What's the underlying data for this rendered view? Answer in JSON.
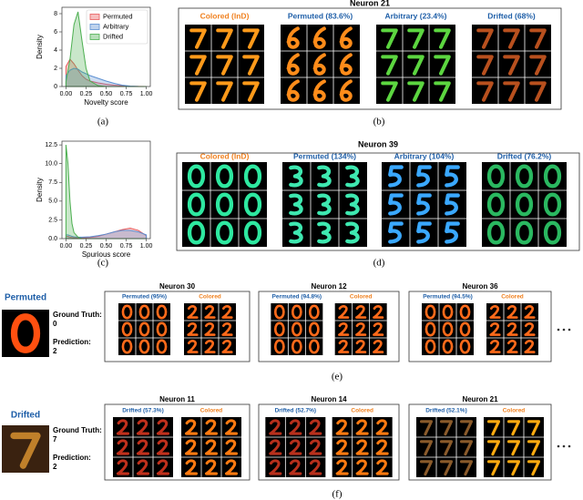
{
  "chart_data": [
    {
      "type": "area",
      "ylabel": "Density",
      "xlabel": "Novelty score",
      "x": [
        0,
        0.05,
        0.1,
        0.15,
        0.2,
        0.25,
        0.3,
        0.4,
        0.5,
        0.6,
        0.7,
        0.8,
        0.9,
        1.0
      ],
      "series": [
        {
          "name": "Permuted",
          "color": "#e8595a",
          "values": [
            2.2,
            3,
            2.5,
            1.8,
            1.2,
            0.8,
            0.6,
            0.4,
            0.25,
            0.15,
            0.08,
            0.03,
            0.01,
            0
          ]
        },
        {
          "name": "Arbitrary",
          "color": "#5b8fd1",
          "values": [
            1.2,
            1.8,
            2,
            1.9,
            1.6,
            1.4,
            1.2,
            0.9,
            0.6,
            0.35,
            0.15,
            0.05,
            0.01,
            0
          ]
        },
        {
          "name": "Drifted",
          "color": "#4caf50",
          "values": [
            0.5,
            3,
            6.8,
            8.2,
            5,
            2,
            0.6,
            0.1,
            0,
            0,
            0,
            0,
            0,
            0
          ]
        }
      ],
      "xlim": [
        -0.05,
        1.05
      ],
      "ylim": [
        0,
        8.7
      ],
      "xticks": [
        {
          "value": 0,
          "label": "0.00"
        },
        0.25,
        {
          "value": 0.5,
          "label": "0.50"
        },
        0.75,
        {
          "value": 1,
          "label": "1.00"
        }
      ],
      "yticks": [
        0,
        2,
        4,
        6,
        8
      ],
      "legend": "upper right"
    },
    {
      "type": "area",
      "ylabel": "Density",
      "xlabel": "Spurious score",
      "x": [
        0,
        0.025,
        0.05,
        0.075,
        0.1,
        0.15,
        0.2,
        0.3,
        0.4,
        0.5,
        0.6,
        0.7,
        0.8,
        0.9,
        1.0
      ],
      "series": [
        {
          "color": "#e8595a",
          "values": [
            0.3,
            0.3,
            0.2,
            0.15,
            0.1,
            0.1,
            0.1,
            0.15,
            0.3,
            0.6,
            0.9,
            1.2,
            1.4,
            1.1,
            0.4
          ]
        },
        {
          "color": "#5b8fd1",
          "values": [
            0.5,
            0.5,
            0.4,
            0.3,
            0.25,
            0.2,
            0.2,
            0.25,
            0.4,
            0.6,
            0.9,
            1.1,
            1.1,
            0.9,
            0.5
          ]
        },
        {
          "color": "#4caf50",
          "values": [
            12.5,
            10,
            5,
            2,
            0.8,
            0.2,
            0,
            0,
            0,
            0,
            0,
            0,
            0,
            0,
            0
          ]
        }
      ],
      "xlim": [
        -0.05,
        1.05
      ],
      "ylim": [
        0,
        13
      ],
      "xticks": [
        {
          "value": 0,
          "label": "0.00"
        },
        0.25,
        {
          "value": 0.5,
          "label": "0.50"
        },
        0.75,
        {
          "value": 1,
          "label": "1.00"
        }
      ],
      "yticks": [
        {
          "value": 0,
          "label": "0.0"
        },
        2.5,
        {
          "value": 5,
          "label": "5.0"
        },
        7.5,
        {
          "value": 10,
          "label": "10.0"
        },
        {
          "value": 12.5,
          "label": "12.5"
        }
      ]
    }
  ],
  "panels": [
    {
      "title": "Neuron 21",
      "groups": [
        {
          "label": "Colored (InD)",
          "color": "#f0801e",
          "digit": "7",
          "ink": "#ff9a1a"
        },
        {
          "label": "Permuted (83.6%)",
          "color": "#1f5fa8",
          "digit": "6",
          "ink": "#ff8c1a"
        },
        {
          "label": "Arbitrary (23.4%)",
          "color": "#1f5fa8",
          "digit": "7",
          "ink": "#5cd640"
        },
        {
          "label": "Drifted (68%)",
          "color": "#1f5fa8",
          "digit": "7",
          "ink": "#b8501e"
        }
      ]
    },
    {
      "title": "Neuron 39",
      "groups": [
        {
          "label": "Colored (InD)",
          "color": "#f0801e",
          "digit": "0",
          "ink": "#2ee8a0"
        },
        {
          "label": "Permuted (134%)",
          "color": "#1f5fa8",
          "digit": "3",
          "ink": "#3ee8b0"
        },
        {
          "label": "Arbitrary (104%)",
          "color": "#1f5fa8",
          "digit": "5",
          "ink": "#3aa8ff"
        },
        {
          "label": "Drifted (76.2%)",
          "color": "#1f5fa8",
          "digit": "0",
          "ink": "#2ab860"
        }
      ]
    }
  ],
  "examples": [
    {
      "label": "Permuted",
      "digit": "0",
      "ink": "#ff5010",
      "ground_truth_label": "Ground Truth:",
      "ground_truth": 0,
      "prediction_label": "Prediction:",
      "prediction": 2,
      "panels": [
        {
          "title": "Neuron 30",
          "groups": [
            {
              "label": "Permuted (95%)",
              "color": "#1f5fa8",
              "digit": "0",
              "ink": "#ff6a1a"
            },
            {
              "label": "Colored",
              "color": "#f0801e",
              "digit": "2",
              "ink": "#ff6a1a"
            }
          ]
        },
        {
          "title": "Neuron 12",
          "groups": [
            {
              "label": "Permuted (94.8%)",
              "color": "#1f5fa8",
              "digit": "0",
              "ink": "#ff6a1a"
            },
            {
              "label": "Colored",
              "color": "#f0801e",
              "digit": "2",
              "ink": "#ff6a1a"
            }
          ]
        },
        {
          "title": "Neuron 36",
          "groups": [
            {
              "label": "Permuted (94.5%)",
              "color": "#1f5fa8",
              "digit": "0",
              "ink": "#ff6a1a"
            },
            {
              "label": "Colored",
              "color": "#f0801e",
              "digit": "2",
              "ink": "#ff6a1a"
            }
          ]
        }
      ]
    },
    {
      "label": "Drifted",
      "digit": "7",
      "ink": "#c0802a",
      "ground_truth_label": "Ground Truth:",
      "ground_truth": 7,
      "prediction_label": "Prediction:",
      "prediction": 2,
      "panels": [
        {
          "title": "Neuron 11",
          "groups": [
            {
              "label": "Drifted (57.3%)",
              "color": "#1f5fa8",
              "digit": "2",
              "ink": "#c0301c"
            },
            {
              "label": "Colored",
              "color": "#f0801e",
              "digit": "2",
              "ink": "#ff7a10"
            }
          ]
        },
        {
          "title": "Neuron 14",
          "groups": [
            {
              "label": "Drifted (52.7%)",
              "color": "#1f5fa8",
              "digit": "2",
              "ink": "#b8301c"
            },
            {
              "label": "Colored",
              "color": "#f0801e",
              "digit": "2",
              "ink": "#ff7a10"
            }
          ]
        },
        {
          "title": "Neuron 21",
          "groups": [
            {
              "label": "Drifted (52.1%)",
              "color": "#1f5fa8",
              "digit": "7",
              "ink": "#8a5a2a"
            },
            {
              "label": "Colored",
              "color": "#f0801e",
              "digit": "7",
              "ink": "#ffaa10"
            }
          ]
        }
      ]
    }
  ],
  "captions": [
    "(a)",
    "(b)",
    "(c)",
    "(d)",
    "(e)",
    "(f)"
  ]
}
